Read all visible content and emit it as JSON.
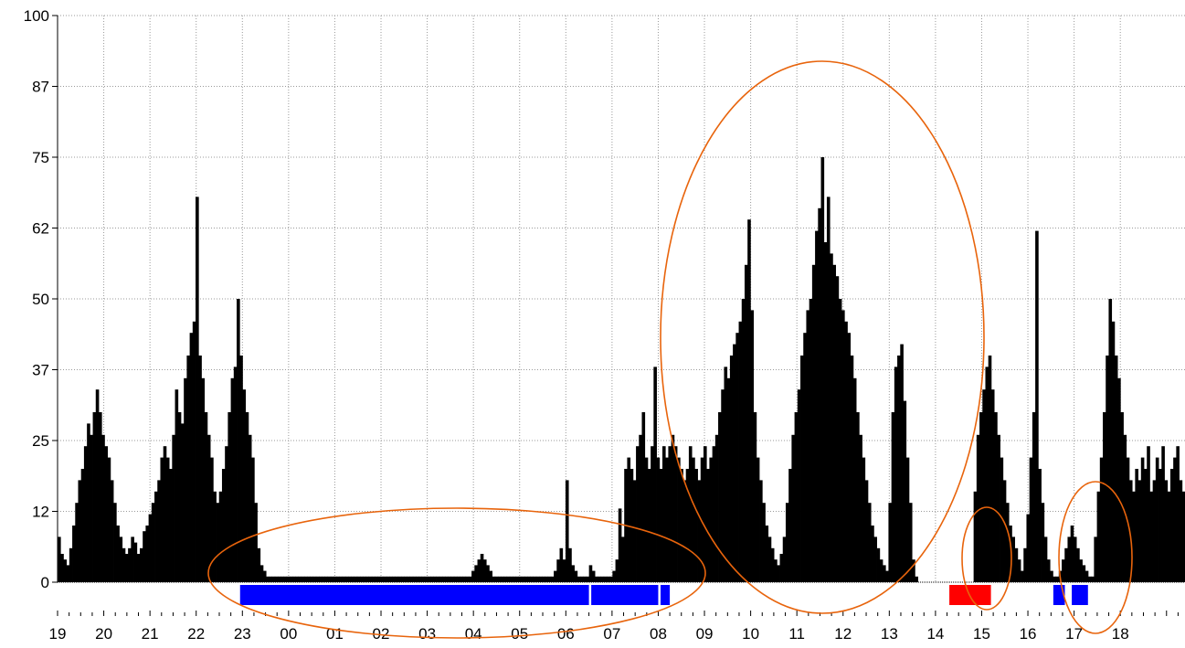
{
  "chart_data": {
    "type": "bar",
    "title": "",
    "xlabel": "",
    "ylabel": "",
    "ylim": [
      0,
      100
    ],
    "grid": true,
    "y_ticks": [
      "0",
      "12",
      "25",
      "37",
      "50",
      "62",
      "75",
      "87",
      "100"
    ],
    "x_ticks": [
      "19",
      "20",
      "21",
      "22",
      "23",
      "00",
      "01",
      "02",
      "03",
      "04",
      "05",
      "06",
      "07",
      "08",
      "09",
      "10",
      "11",
      "12",
      "13",
      "14",
      "15",
      "16",
      "17",
      "18"
    ],
    "x_range_hours": [
      19,
      43.4
    ],
    "series": [
      {
        "values": [
          8,
          5,
          4,
          3,
          6,
          10,
          14,
          18,
          20,
          24,
          28,
          26,
          30,
          34,
          30,
          26,
          24,
          22,
          18,
          14,
          10,
          8,
          6,
          5,
          6,
          8,
          7,
          5,
          6,
          9,
          10,
          12,
          14,
          16,
          18,
          22,
          24,
          22,
          20,
          26,
          34,
          30,
          28,
          36,
          40,
          44,
          46,
          68,
          40,
          36,
          30,
          26,
          22,
          16,
          14,
          16,
          20,
          24,
          30,
          36,
          38,
          50,
          40,
          34,
          30,
          26,
          22,
          14,
          6,
          3,
          2,
          1,
          1,
          1,
          1,
          1,
          1,
          1,
          1,
          1,
          1,
          1,
          1,
          1,
          1,
          1,
          1,
          1,
          1,
          1,
          1,
          1,
          1,
          1,
          1,
          1,
          1,
          1,
          1,
          1,
          1,
          1,
          1,
          1,
          1,
          1,
          1,
          1,
          1,
          1,
          1,
          1,
          1,
          1,
          1,
          1,
          1,
          1,
          1,
          1,
          1,
          1,
          1,
          1,
          1,
          1,
          1,
          1,
          1,
          1,
          1,
          1,
          1,
          1,
          1,
          1,
          1,
          1,
          1,
          1,
          1,
          2,
          3,
          4,
          5,
          4,
          3,
          2,
          1,
          1,
          1,
          1,
          1,
          1,
          1,
          1,
          1,
          1,
          1,
          1,
          1,
          1,
          1,
          1,
          1,
          1,
          1,
          1,
          1,
          2,
          4,
          6,
          4,
          18,
          6,
          3,
          2,
          1,
          1,
          1,
          1,
          3,
          2,
          1,
          1,
          1,
          1,
          1,
          1,
          2,
          4,
          13,
          8,
          20,
          22,
          20,
          18,
          24,
          26,
          30,
          22,
          20,
          24,
          38,
          22,
          20,
          24,
          22,
          24,
          26,
          24,
          22,
          20,
          18,
          20,
          24,
          22,
          20,
          18,
          22,
          24,
          20,
          22,
          24,
          26,
          30,
          34,
          38,
          36,
          40,
          42,
          44,
          46,
          50,
          56,
          64,
          48,
          30,
          22,
          18,
          14,
          10,
          8,
          6,
          4,
          3,
          5,
          8,
          14,
          20,
          26,
          30,
          34,
          40,
          44,
          48,
          50,
          56,
          62,
          66,
          75,
          60,
          68,
          58,
          56,
          54,
          50,
          48,
          46,
          44,
          40,
          36,
          30,
          26,
          22,
          18,
          14,
          10,
          8,
          6,
          4,
          3,
          2,
          14,
          30,
          38,
          40,
          42,
          32,
          22,
          14,
          4,
          1,
          0,
          0,
          0,
          0,
          0,
          0,
          0,
          0,
          0,
          0,
          0,
          0,
          0,
          0,
          0,
          0,
          0,
          0,
          0,
          16,
          26,
          30,
          34,
          38,
          40,
          34,
          30,
          26,
          22,
          18,
          14,
          10,
          8,
          6,
          4,
          2,
          6,
          12,
          22,
          30,
          62,
          20,
          14,
          8,
          4,
          2,
          1,
          1,
          2,
          4,
          6,
          8,
          10,
          8,
          6,
          4,
          3,
          2,
          1,
          1,
          8,
          16,
          22,
          30,
          40,
          50,
          46,
          40,
          36,
          30,
          26,
          22,
          18,
          16,
          20,
          18,
          22,
          20,
          24,
          16,
          18,
          22,
          20,
          24,
          18,
          16,
          20,
          22,
          24,
          18,
          16
        ]
      }
    ],
    "highlights": {
      "blue_bars_hours": [
        [
          22.95,
          30.5
        ],
        [
          30.55,
          32.0
        ],
        [
          32.05,
          32.25
        ],
        [
          40.55,
          40.8
        ],
        [
          40.95,
          41.3
        ]
      ],
      "red_bars_hours": [
        [
          38.3,
          39.2
        ]
      ],
      "blue_color": "#0000ff",
      "red_color": "#ff0000"
    },
    "annotations": {
      "ellipse_color": "#e8640c"
    }
  }
}
